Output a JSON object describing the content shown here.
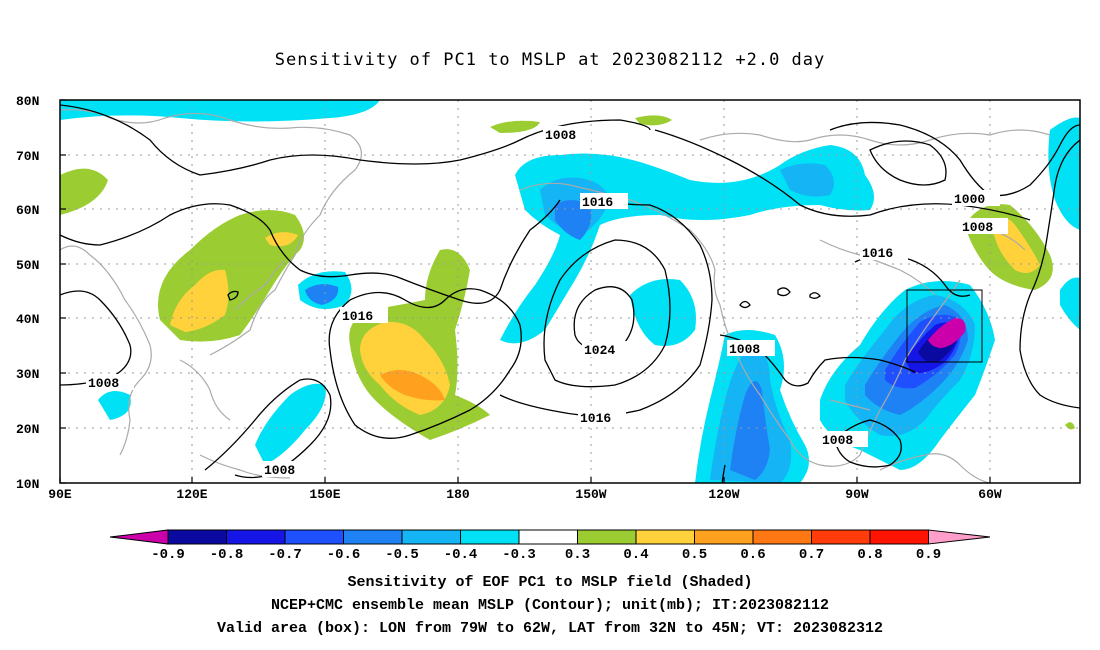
{
  "title": "Sensitivity of PC1 to MSLP at 2023082112 +2.0 day",
  "map": {
    "lon_ticks": [
      "90E",
      "120E",
      "150E",
      "180",
      "150W",
      "120W",
      "90W",
      "60W"
    ],
    "lat_ticks": [
      "80N",
      "70N",
      "60N",
      "50N",
      "40N",
      "30N",
      "20N",
      "10N"
    ],
    "contour_labels": [
      "1008",
      "1016",
      "1000",
      "1008",
      "1016",
      "1016",
      "1024",
      "1008",
      "1008",
      "1008",
      "1008",
      "1016"
    ],
    "valid_box": {
      "lon_from": "79W",
      "lon_to": "62W",
      "lat_from": "32N",
      "lat_to": "45N"
    }
  },
  "colorbar": {
    "labels": [
      "-0.9",
      "-0.8",
      "-0.7",
      "-0.6",
      "-0.5",
      "-0.4",
      "-0.3",
      "0.3",
      "0.4",
      "0.5",
      "0.6",
      "0.7",
      "0.8",
      "0.9"
    ],
    "colors": [
      "#0a0aa0",
      "#1515e6",
      "#1e50ff",
      "#1e82f5",
      "#14b4f5",
      "#00e1f5",
      "#ffffff",
      "#9bcd32",
      "#ffd23c",
      "#ffa01e",
      "#ff7814",
      "#ff3c0a",
      "#ff1400"
    ],
    "low_arrow_color": "#cc00aa",
    "high_arrow_color": "#ff9ec8"
  },
  "captions": {
    "line1": "Sensitivity of EOF PC1 to MSLP field (Shaded)",
    "line2": "NCEP+CMC ensemble mean MSLP (Contour); unit(mb); IT:2023082112",
    "line3": "Valid area (box): LON from 79W to 62W, LAT from 32N to 45N; VT: 2023082312"
  }
}
